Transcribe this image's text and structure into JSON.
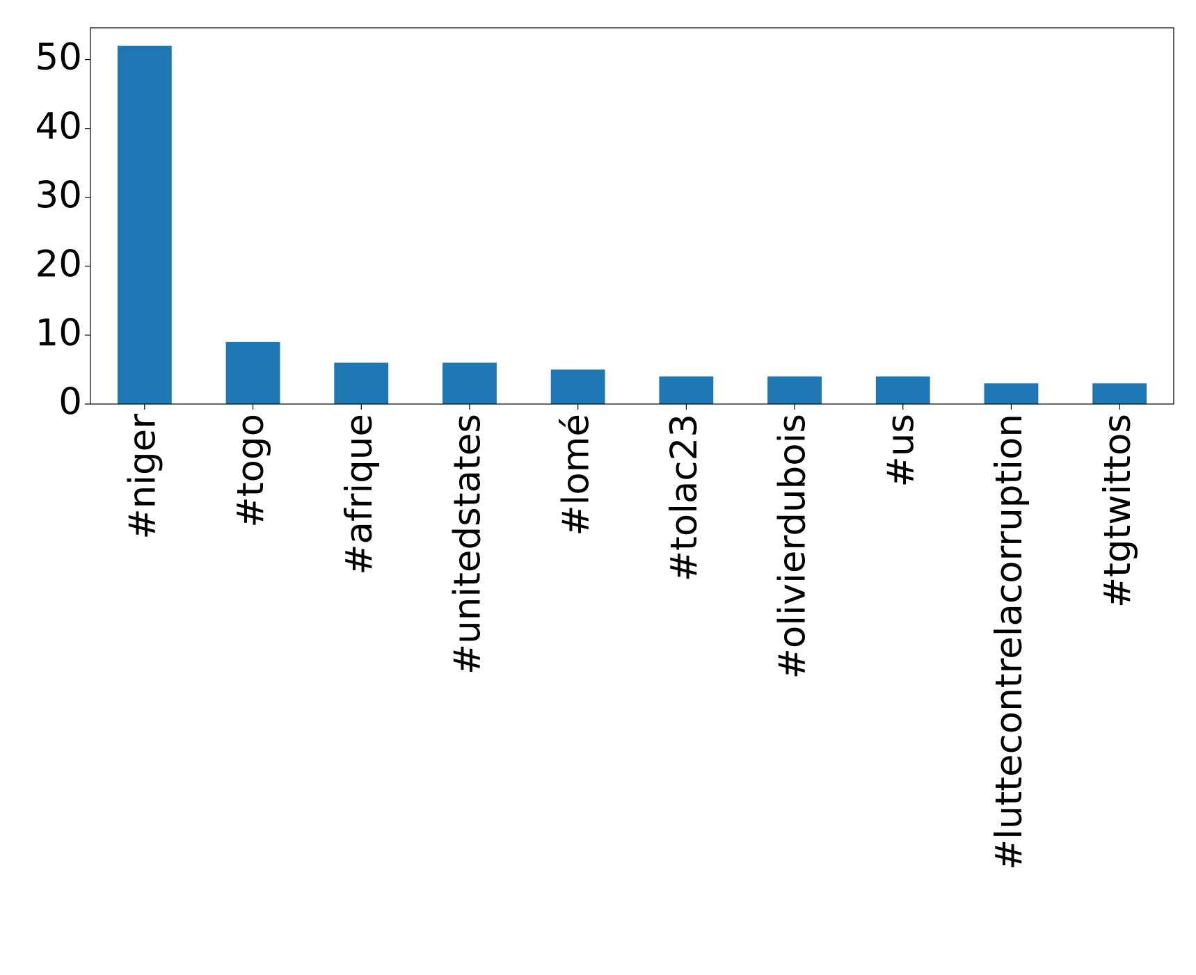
{
  "chart_data": {
    "type": "bar",
    "categories": [
      "#niger",
      "#togo",
      "#afrique",
      "#unitedstates",
      "#lomé",
      "#tolac23",
      "#olivierdubois",
      "#us",
      "#luttecontrelacorruption",
      "#tgtwittos"
    ],
    "values": [
      52,
      9,
      6,
      6,
      5,
      4,
      4,
      4,
      3,
      3
    ],
    "color": "#1f77b4",
    "ylim": [
      0,
      54.6
    ],
    "yticks": [
      0,
      10,
      20,
      30,
      40,
      50
    ],
    "grid": false
  }
}
